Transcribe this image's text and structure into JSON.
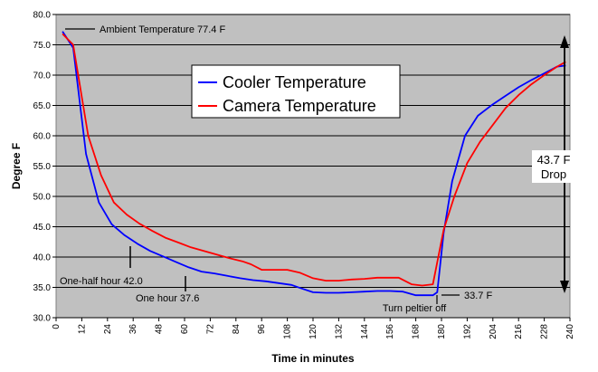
{
  "chart_data": {
    "type": "line",
    "xlabel": "Time in minutes",
    "ylabel": "Degree F",
    "xlim": [
      0,
      240
    ],
    "ylim": [
      30,
      80
    ],
    "x_ticks": [
      0,
      12,
      24,
      36,
      48,
      60,
      72,
      84,
      96,
      108,
      120,
      132,
      144,
      156,
      168,
      180,
      192,
      204,
      216,
      228,
      240
    ],
    "y_ticks": [
      "30.0",
      "35.0",
      "40.0",
      "45.0",
      "50.0",
      "55.0",
      "60.0",
      "65.0",
      "70.0",
      "75.0",
      "80.0"
    ],
    "grid": "horizontal",
    "plot_background": "#c0c0c0",
    "legend_position": "upper-center",
    "series": [
      {
        "name": "Cooler Temperature",
        "color": "#0000ff",
        "points": [
          [
            3,
            77.2
          ],
          [
            8,
            74.5
          ],
          [
            14,
            57.0
          ],
          [
            20,
            49.0
          ],
          [
            26,
            45.4
          ],
          [
            32,
            43.6
          ],
          [
            38,
            42.2
          ],
          [
            44,
            41.0
          ],
          [
            50,
            40.1
          ],
          [
            56,
            39.2
          ],
          [
            62,
            38.3
          ],
          [
            68,
            37.6
          ],
          [
            74,
            37.3
          ],
          [
            80,
            36.9
          ],
          [
            86,
            36.5
          ],
          [
            92,
            36.2
          ],
          [
            98,
            36.0
          ],
          [
            104,
            35.7
          ],
          [
            110,
            35.4
          ],
          [
            114,
            34.9
          ],
          [
            120,
            34.2
          ],
          [
            126,
            34.1
          ],
          [
            132,
            34.1
          ],
          [
            138,
            34.2
          ],
          [
            144,
            34.3
          ],
          [
            150,
            34.4
          ],
          [
            156,
            34.4
          ],
          [
            162,
            34.3
          ],
          [
            168,
            33.7
          ],
          [
            176,
            33.7
          ],
          [
            178,
            34.2
          ],
          [
            181,
            44.0
          ],
          [
            185,
            52.5
          ],
          [
            191,
            60.0
          ],
          [
            197,
            63.3
          ],
          [
            204,
            65.2
          ],
          [
            210,
            66.6
          ],
          [
            216,
            68.0
          ],
          [
            222,
            69.2
          ],
          [
            228,
            70.3
          ],
          [
            234,
            71.4
          ],
          [
            238,
            71.6
          ]
        ]
      },
      {
        "name": "Camera Temperature",
        "color": "#ff0000",
        "points": [
          [
            3,
            76.8
          ],
          [
            8,
            75.0
          ],
          [
            15,
            60.0
          ],
          [
            21,
            53.5
          ],
          [
            27,
            49.0
          ],
          [
            33,
            47.0
          ],
          [
            39,
            45.5
          ],
          [
            45,
            44.3
          ],
          [
            51,
            43.2
          ],
          [
            57,
            42.4
          ],
          [
            63,
            41.6
          ],
          [
            69,
            41.0
          ],
          [
            75,
            40.4
          ],
          [
            81,
            39.8
          ],
          [
            87,
            39.3
          ],
          [
            91,
            38.8
          ],
          [
            96,
            37.9
          ],
          [
            102,
            37.9
          ],
          [
            108,
            37.9
          ],
          [
            114,
            37.4
          ],
          [
            120,
            36.5
          ],
          [
            126,
            36.1
          ],
          [
            132,
            36.1
          ],
          [
            138,
            36.3
          ],
          [
            144,
            36.4
          ],
          [
            150,
            36.6
          ],
          [
            160,
            36.6
          ],
          [
            166,
            35.5
          ],
          [
            171,
            35.3
          ],
          [
            176,
            35.5
          ],
          [
            181,
            44.5
          ],
          [
            186,
            50.0
          ],
          [
            192,
            55.5
          ],
          [
            198,
            59.0
          ],
          [
            204,
            61.8
          ],
          [
            210,
            64.6
          ],
          [
            216,
            66.7
          ],
          [
            222,
            68.5
          ],
          [
            228,
            70.0
          ],
          [
            234,
            71.4
          ],
          [
            238,
            72.2
          ]
        ]
      }
    ],
    "annotations": [
      {
        "text": "Ambient Temperature 77.4 F"
      },
      {
        "text": "One-half hour 42.0"
      },
      {
        "text": "One hour 37.6"
      },
      {
        "text": "Turn peltier off"
      },
      {
        "text": "33.7 F"
      },
      {
        "text": "43.7 F"
      },
      {
        "text": "Drop"
      }
    ]
  }
}
